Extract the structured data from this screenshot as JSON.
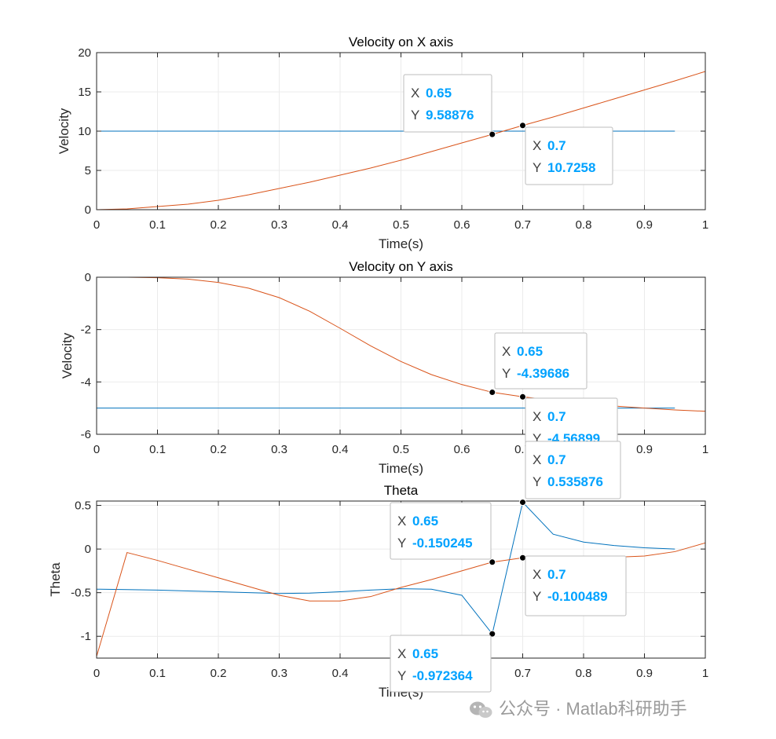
{
  "chart_data": [
    {
      "type": "line",
      "title": "Velocity on X axis",
      "xlabel": "Time(s)",
      "ylabel": "Velocity",
      "xlim": [
        0,
        1
      ],
      "ylim": [
        0,
        20
      ],
      "xticks": [
        "0",
        "0.1",
        "0.2",
        "0.3",
        "0.4",
        "0.5",
        "0.6",
        "0.7",
        "0.8",
        "0.9",
        "1"
      ],
      "yticks": [
        "0",
        "5",
        "10",
        "15",
        "20"
      ],
      "grid": true,
      "series": [
        {
          "color": "#0072BD",
          "x": [
            0,
            0.95
          ],
          "y": [
            10,
            10
          ]
        },
        {
          "color": "#D95319",
          "x": [
            0,
            0.05,
            0.1,
            0.15,
            0.2,
            0.25,
            0.3,
            0.35,
            0.4,
            0.45,
            0.5,
            0.55,
            0.6,
            0.65,
            0.7,
            0.75,
            0.8,
            0.85,
            0.9,
            0.95,
            1
          ],
          "y": [
            0,
            0.1,
            0.4,
            0.7,
            1.2,
            1.9,
            2.7,
            3.5,
            4.4,
            5.3,
            6.3,
            7.4,
            8.5,
            9.58876,
            10.7258,
            11.8,
            12.95,
            14.1,
            15.25,
            16.4,
            17.6
          ]
        }
      ],
      "datatips": [
        {
          "x_label": "X",
          "x_value": "0.65",
          "y_label": "Y",
          "y_value": "9.58876",
          "x": 0.65,
          "y": 9.58876
        },
        {
          "x_label": "X",
          "x_value": "0.7",
          "y_label": "Y",
          "y_value": "10.7258",
          "x": 0.7,
          "y": 10.7258
        }
      ]
    },
    {
      "type": "line",
      "title": "Velocity on Y axis",
      "xlabel": "Time(s)",
      "ylabel": "Velocity",
      "xlim": [
        0,
        1
      ],
      "ylim": [
        -6,
        0
      ],
      "xticks": [
        "0",
        "0.1",
        "0.2",
        "0.3",
        "0.4",
        "0.5",
        "0.6",
        "0.7",
        "0.8",
        "0.9",
        "1"
      ],
      "yticks": [
        "-6",
        "-4",
        "-2",
        "0"
      ],
      "grid": true,
      "series": [
        {
          "color": "#0072BD",
          "x": [
            0,
            0.95
          ],
          "y": [
            -5,
            -5
          ]
        },
        {
          "color": "#D95319",
          "x": [
            0,
            0.05,
            0.1,
            0.15,
            0.2,
            0.25,
            0.3,
            0.35,
            0.4,
            0.45,
            0.5,
            0.55,
            0.6,
            0.65,
            0.7,
            0.75,
            0.8,
            0.85,
            0.9,
            0.95,
            1
          ],
          "y": [
            0,
            0,
            -0.02,
            -0.07,
            -0.2,
            -0.42,
            -0.78,
            -1.3,
            -1.95,
            -2.62,
            -3.22,
            -3.72,
            -4.1,
            -4.39686,
            -4.56899,
            -4.7,
            -4.82,
            -4.92,
            -5.0,
            -5.07,
            -5.12
          ]
        }
      ],
      "datatips": [
        {
          "x_label": "X",
          "x_value": "0.65",
          "y_label": "Y",
          "y_value": "-4.39686",
          "x": 0.65,
          "y": -4.39686
        },
        {
          "x_label": "X",
          "x_value": "0.7",
          "y_label": "Y",
          "y_value": "-4.56899",
          "x": 0.7,
          "y": -4.56899
        }
      ]
    },
    {
      "type": "line",
      "title": "Theta",
      "xlabel": "Time(s)",
      "ylabel": "Theta",
      "xlim": [
        0,
        1
      ],
      "ylim": [
        -1.25,
        0.55
      ],
      "xticks": [
        "0",
        "0.1",
        "0.2",
        "0.3",
        "0.4",
        "0.5",
        "0.6",
        "0.7",
        "0.8",
        "0.9",
        "1"
      ],
      "yticks": [
        "-1",
        "-0.5",
        "0",
        "0.5"
      ],
      "ytick_values": [
        -1,
        -0.5,
        0,
        0.5
      ],
      "grid": true,
      "series": [
        {
          "color": "#0072BD",
          "x": [
            0,
            0.05,
            0.1,
            0.15,
            0.2,
            0.25,
            0.3,
            0.35,
            0.4,
            0.45,
            0.5,
            0.55,
            0.6,
            0.65,
            0.7,
            0.75,
            0.8,
            0.85,
            0.9,
            0.95
          ],
          "y": [
            -0.46,
            -0.465,
            -0.47,
            -0.48,
            -0.49,
            -0.5,
            -0.51,
            -0.505,
            -0.49,
            -0.47,
            -0.455,
            -0.46,
            -0.53,
            -0.972364,
            0.535876,
            0.17,
            0.08,
            0.04,
            0.015,
            0.0
          ]
        },
        {
          "color": "#D95319",
          "x": [
            0,
            0.05,
            0.1,
            0.15,
            0.2,
            0.25,
            0.3,
            0.35,
            0.4,
            0.45,
            0.5,
            0.55,
            0.6,
            0.65,
            0.7,
            0.75,
            0.8,
            0.85,
            0.9,
            0.95,
            1
          ],
          "y": [
            -1.23,
            -0.04,
            -0.13,
            -0.23,
            -0.33,
            -0.43,
            -0.53,
            -0.595,
            -0.595,
            -0.545,
            -0.44,
            -0.35,
            -0.25,
            -0.150245,
            -0.100489,
            -0.085,
            -0.08,
            -0.095,
            -0.08,
            -0.03,
            0.07
          ]
        }
      ],
      "datatips": [
        {
          "x_label": "X",
          "x_value": "0.7",
          "y_label": "Y",
          "y_value": "0.535876",
          "x": 0.7,
          "y": 0.535876
        },
        {
          "x_label": "X",
          "x_value": "0.65",
          "y_label": "Y",
          "y_value": "-0.150245",
          "x": 0.65,
          "y": -0.150245
        },
        {
          "x_label": "X",
          "x_value": "0.7",
          "y_label": "Y",
          "y_value": "-0.100489",
          "x": 0.7,
          "y": -0.100489
        },
        {
          "x_label": "X",
          "x_value": "0.65",
          "y_label": "Y",
          "y_value": "-0.972364",
          "x": 0.65,
          "y": -0.972364
        }
      ]
    }
  ],
  "watermark": {
    "icon": "wechat-icon",
    "text": "公众号 · Matlab科研助手"
  },
  "colors": {
    "series1": "#0072BD",
    "series2": "#D95319",
    "tip_value": "#00A2FF",
    "axis": "#262626",
    "grid": "#ebebeb"
  }
}
